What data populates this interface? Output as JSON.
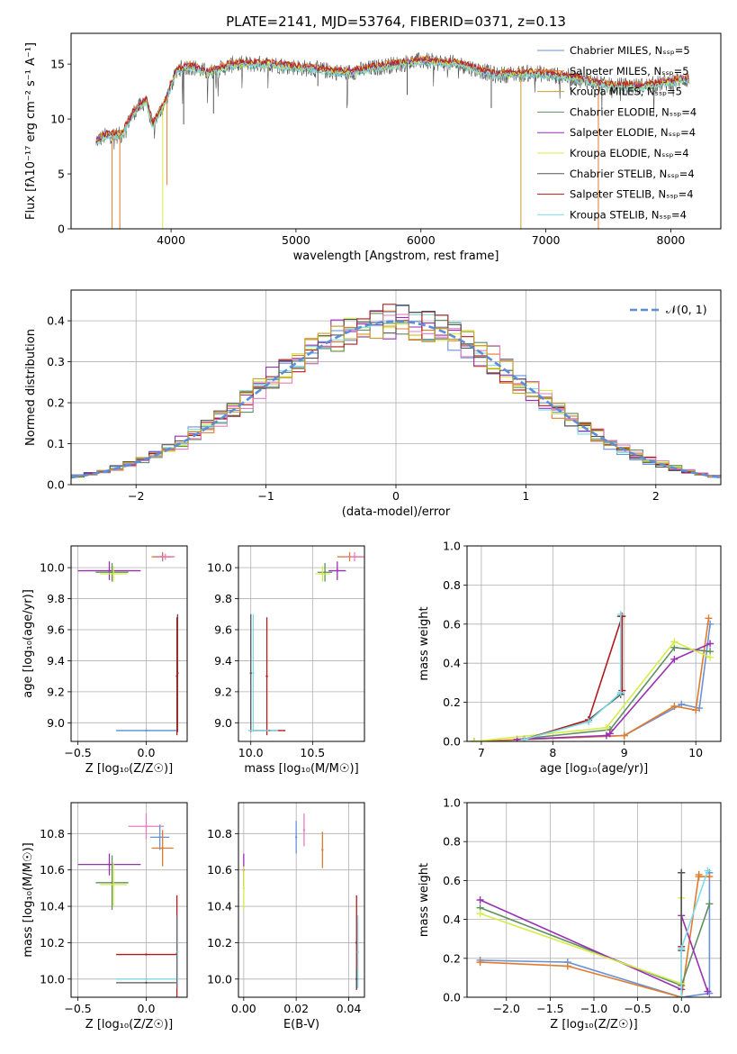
{
  "page_title": "PLATE=2141, MJD=53764, FIBERID=0371, z=0.13",
  "colors": {
    "chabrier_miles": "#6a93d6",
    "salpeter_miles": "#e07b2e",
    "kroupa_miles": "#c7a22a",
    "chabrier_elodie": "#5f8f63",
    "salpeter_elodie": "#9a2fb4",
    "kroupa_elodie": "#d6ec4a",
    "chabrier_stelib": "#555555",
    "salpeter_stelib": "#b21b1b",
    "kroupa_stelib": "#7fdbe6",
    "gaussian": "#5b8ed6",
    "pink": "#e57fc0",
    "grid": "#b0b0b0"
  },
  "chart_data": [
    {
      "id": "spectrum",
      "type": "line",
      "title": "PLATE=2141, MJD=53764, FIBERID=0371, z=0.13",
      "xlabel": "wavelength [Angstrom, rest frame]",
      "ylabel": "Flux [fλ10⁻¹⁷ erg cm⁻² s⁻¹ A⁻¹]",
      "xlim": [
        3200,
        8400
      ],
      "ylim": [
        0,
        17.8
      ],
      "xticks": [
        4000,
        5000,
        6000,
        7000,
        8000
      ],
      "yticks": [
        0,
        5,
        10,
        15
      ],
      "grid": false,
      "legend_position": "right",
      "continuum": {
        "x": [
          3400,
          3500,
          3600,
          3700,
          3800,
          3850,
          3950,
          4050,
          4150,
          4300,
          4500,
          4800,
          5100,
          5400,
          5700,
          6000,
          6300,
          6600,
          6900,
          7200,
          7500,
          7800,
          8100
        ],
        "y": [
          8.0,
          8.6,
          8.5,
          10.6,
          11.7,
          9.4,
          11.5,
          14.5,
          14.8,
          14.2,
          15.0,
          15.0,
          14.6,
          14.2,
          14.8,
          15.3,
          15.0,
          14.0,
          14.2,
          13.8,
          13.0,
          13.0,
          13.6
        ]
      },
      "absorption_dips": [
        {
          "x": 3527,
          "y": 0,
          "series": "Salpeter MILES"
        },
        {
          "x": 3590,
          "y": 0,
          "series": "Salpeter MILES"
        },
        {
          "x": 3933,
          "y": 0,
          "series": "Kroupa ELODIE"
        },
        {
          "x": 3968,
          "y": 4.0,
          "series": "Salpeter MILES"
        },
        {
          "x": 4101,
          "y": 9.5,
          "series": "Chabrier STELIB"
        },
        {
          "x": 4340,
          "y": 10.5,
          "series": "Chabrier STELIB"
        },
        {
          "x": 5175,
          "y": 13.0,
          "series": "Chabrier STELIB"
        },
        {
          "x": 5890,
          "y": 12.2,
          "series": "Chabrier STELIB"
        },
        {
          "x": 6563,
          "y": 11.0,
          "series": "Chabrier STELIB"
        },
        {
          "x": 6800,
          "y": 0,
          "series": "Kroupa MILES"
        },
        {
          "x": 7420,
          "y": 0,
          "series": "Salpeter MILES"
        }
      ],
      "series": [
        {
          "name": "Chabrier MILES, N_SSP=5",
          "color_key": "chabrier_miles",
          "offset": 0.0
        },
        {
          "name": "Salpeter MILES, N_SSP=5",
          "color_key": "salpeter_miles",
          "offset": 0.2
        },
        {
          "name": "Kroupa MILES, N_SSP=5",
          "color_key": "kroupa_miles",
          "offset": 0.1
        },
        {
          "name": "Chabrier ELODIE, N_SSP=4",
          "color_key": "chabrier_elodie",
          "offset": -0.1
        },
        {
          "name": "Salpeter ELODIE, N_SSP=4",
          "color_key": "salpeter_elodie",
          "offset": 0.05
        },
        {
          "name": "Kroupa ELODIE, N_SSP=4",
          "color_key": "kroupa_elodie",
          "offset": -0.05
        },
        {
          "name": "Chabrier STELIB, N_SSP=4",
          "color_key": "chabrier_stelib",
          "offset": 0.0
        },
        {
          "name": "Salpeter STELIB, N_SSP=4",
          "color_key": "salpeter_stelib",
          "offset": 0.15
        },
        {
          "name": "Kroupa STELIB, N_SSP=4",
          "color_key": "kroupa_stelib",
          "offset": -0.15
        }
      ]
    },
    {
      "id": "residuals",
      "type": "line",
      "xlabel": "(data-model)/error",
      "ylabel": "Normed distribution",
      "xlim": [
        -2.5,
        2.5
      ],
      "ylim": [
        0,
        0.475
      ],
      "xticks": [
        -2,
        -1,
        0,
        1,
        2
      ],
      "xticklabels": [
        "−2",
        "−1",
        "0",
        "1",
        "2"
      ],
      "yticks": [
        0.0,
        0.1,
        0.2,
        0.3,
        0.4
      ],
      "yticklabels": [
        "0.0",
        "0.1",
        "0.2",
        "0.3",
        "0.4"
      ],
      "grid": true,
      "legend_position": "top-right",
      "gaussian": {
        "name": "𝒩(0, 1)",
        "mean": 0,
        "sigma": 1,
        "style": "dashed"
      },
      "histogram": {
        "bin_width": 0.1,
        "range": [
          -2.5,
          2.5
        ],
        "n_series": 10
      }
    },
    {
      "id": "age_vs_Z",
      "type": "scatter",
      "xlabel": "Z [log₁₀(Z/Z☉)]",
      "ylabel": "age  [log₁₀(age/yr)]",
      "xlim": [
        -0.55,
        0.3
      ],
      "ylim": [
        8.88,
        10.14
      ],
      "xticks": [
        -0.5,
        0.0
      ],
      "xticklabels": [
        "−0.5",
        "0.0"
      ],
      "yticks": [
        9.0,
        9.2,
        9.4,
        9.6,
        9.8,
        10.0
      ],
      "yticklabels": [
        "9.0",
        "9.2",
        "9.4",
        "9.6",
        "9.8",
        "10.0"
      ],
      "grid": true,
      "points": [
        {
          "x": 0.12,
          "y": 10.07,
          "xerr": 0.06,
          "yerr": 0.03,
          "color_key": "chabrier_miles"
        },
        {
          "x": 0.12,
          "y": 10.07,
          "xerr": 0.08,
          "yerr": 0.02,
          "color_key": "salpeter_miles"
        },
        {
          "x": 0.14,
          "y": 10.07,
          "xerr": 0.07,
          "yerr": 0.02,
          "color_key": "pink"
        },
        {
          "x": -0.27,
          "y": 9.98,
          "xerr": 0.23,
          "yerr": 0.06,
          "color_key": "salpeter_elodie"
        },
        {
          "x": -0.25,
          "y": 9.97,
          "xerr": 0.12,
          "yerr": 0.06,
          "color_key": "chabrier_elodie"
        },
        {
          "x": -0.24,
          "y": 9.96,
          "xerr": 0.1,
          "yerr": 0.05,
          "color_key": "kroupa_elodie"
        },
        {
          "x": 0.23,
          "y": 9.32,
          "xerr": 0.0,
          "yerr": 0.38,
          "color_key": "chabrier_stelib"
        },
        {
          "x": 0.225,
          "y": 9.3,
          "xerr": 0.0,
          "yerr": 0.38,
          "color_key": "salpeter_stelib"
        },
        {
          "x": 0.0,
          "y": 8.95,
          "xerr": 0.22,
          "yerr": 0.0,
          "color_key": "kroupa_stelib"
        },
        {
          "x": 0.0,
          "y": 8.95,
          "xerr": 0.22,
          "yerr": 0.0,
          "color_key": "chabrier_miles"
        }
      ]
    },
    {
      "id": "age_vs_mass",
      "type": "scatter",
      "xlabel": "mass [log₁₀(M/M☉)]",
      "ylabel": "",
      "xlim": [
        9.9,
        10.92
      ],
      "ylim": [
        8.88,
        10.14
      ],
      "xticks": [
        10.0,
        10.5
      ],
      "xticklabels": [
        "10.0",
        "10.5"
      ],
      "yticks": [
        9.0,
        9.2,
        9.4,
        9.6,
        9.8,
        10.0
      ],
      "yticklabels": [
        "9.0",
        "9.2",
        "9.4",
        "9.6",
        "9.8",
        "10.0"
      ],
      "grid": true,
      "points": [
        {
          "x": 10.8,
          "y": 10.07,
          "xerr": 0.1,
          "yerr": 0.03,
          "color_key": "salpeter_miles"
        },
        {
          "x": 10.84,
          "y": 10.07,
          "xerr": 0.08,
          "yerr": 0.03,
          "color_key": "pink"
        },
        {
          "x": 10.7,
          "y": 9.98,
          "xerr": 0.07,
          "yerr": 0.06,
          "color_key": "salpeter_elodie"
        },
        {
          "x": 10.6,
          "y": 9.97,
          "xerr": 0.06,
          "yerr": 0.06,
          "color_key": "chabrier_elodie"
        },
        {
          "x": 10.58,
          "y": 9.96,
          "xerr": 0.06,
          "yerr": 0.05,
          "color_key": "kroupa_elodie"
        },
        {
          "x": 10.0,
          "y": 9.32,
          "xerr": 0.0,
          "yerr": 0.38,
          "color_key": "chabrier_stelib"
        },
        {
          "x": 10.13,
          "y": 9.3,
          "xerr": 0.0,
          "yerr": 0.38,
          "color_key": "salpeter_stelib"
        },
        {
          "x": 10.02,
          "y": 9.32,
          "xerr": 0.0,
          "yerr": 0.38,
          "color_key": "kroupa_stelib"
        },
        {
          "x": 10.15,
          "y": 8.95,
          "xerr": 0.13,
          "yerr": 0.0,
          "color_key": "salpeter_stelib"
        },
        {
          "x": 10.1,
          "y": 8.95,
          "xerr": 0.12,
          "yerr": 0.0,
          "color_key": "kroupa_stelib"
        }
      ]
    },
    {
      "id": "mass_weight_vs_age",
      "type": "line",
      "xlabel": "age  [log₁₀(age/yr)]",
      "ylabel": "mass weight",
      "xlim": [
        6.8,
        10.35
      ],
      "ylim": [
        0,
        1.0
      ],
      "xticks": [
        7,
        8,
        9,
        10
      ],
      "xticklabels": [
        "7",
        "8",
        "9",
        "10"
      ],
      "yticks": [
        0.0,
        0.2,
        0.4,
        0.6,
        0.8,
        1.0
      ],
      "yticklabels": [
        "0.0",
        "0.2",
        "0.4",
        "0.6",
        "0.8",
        "1.0"
      ],
      "grid": true,
      "series": [
        {
          "color_key": "chabrier_miles",
          "x": [
            6.9,
            9.0,
            9.8,
            10.05,
            10.2
          ],
          "y": [
            0.0,
            0.03,
            0.19,
            0.17,
            0.6
          ]
        },
        {
          "color_key": "salpeter_miles",
          "x": [
            6.9,
            9.0,
            9.7,
            10.0,
            10.18
          ],
          "y": [
            0.0,
            0.03,
            0.18,
            0.16,
            0.63
          ]
        },
        {
          "color_key": "chabrier_elodie",
          "x": [
            7.5,
            8.8,
            9.7,
            10.2
          ],
          "y": [
            0.01,
            0.06,
            0.48,
            0.46
          ]
        },
        {
          "color_key": "salpeter_elodie",
          "x": [
            7.5,
            8.75,
            8.8,
            9.7,
            10.2
          ],
          "y": [
            0.01,
            0.03,
            0.04,
            0.42,
            0.5
          ]
        },
        {
          "color_key": "kroupa_elodie",
          "x": [
            6.9,
            8.75,
            9.7,
            10.2
          ],
          "y": [
            0.0,
            0.07,
            0.51,
            0.43
          ]
        },
        {
          "color_key": "chabrier_stelib",
          "x": [
            7.6,
            8.5,
            8.95,
            8.95
          ],
          "y": [
            0.01,
            0.11,
            0.24,
            0.64
          ]
        },
        {
          "color_key": "salpeter_stelib",
          "x": [
            7.6,
            8.5,
            8.97,
            8.97
          ],
          "y": [
            0.01,
            0.11,
            0.64,
            0.26
          ]
        },
        {
          "color_key": "kroupa_stelib",
          "x": [
            7.6,
            8.5,
            8.95,
            8.95
          ],
          "y": [
            0.01,
            0.1,
            0.25,
            0.65
          ]
        }
      ]
    },
    {
      "id": "mass_vs_Z",
      "type": "scatter",
      "xlabel": "Z [log₁₀(Z/Z☉)]",
      "ylabel": "mass [log₁₀(M/M☉)]",
      "xlim": [
        -0.55,
        0.3
      ],
      "ylim": [
        9.9,
        10.97
      ],
      "xticks": [
        -0.5,
        0.0
      ],
      "xticklabels": [
        "−0.5",
        "0.0"
      ],
      "yticks": [
        10.0,
        10.2,
        10.4,
        10.6,
        10.8
      ],
      "yticklabels": [
        "10.0",
        "10.2",
        "10.4",
        "10.6",
        "10.8"
      ],
      "grid": true,
      "points": [
        {
          "x": 0.0,
          "y": 10.84,
          "xerr": 0.13,
          "yerr": 0.07,
          "color_key": "pink"
        },
        {
          "x": 0.1,
          "y": 10.78,
          "xerr": 0.07,
          "yerr": 0.07,
          "color_key": "chabrier_miles"
        },
        {
          "x": 0.12,
          "y": 10.72,
          "xerr": 0.08,
          "yerr": 0.1,
          "color_key": "salpeter_miles"
        },
        {
          "x": -0.27,
          "y": 10.63,
          "xerr": 0.23,
          "yerr": 0.06,
          "color_key": "salpeter_elodie"
        },
        {
          "x": -0.25,
          "y": 10.53,
          "xerr": 0.12,
          "yerr": 0.15,
          "color_key": "chabrier_elodie"
        },
        {
          "x": -0.24,
          "y": 10.52,
          "xerr": 0.1,
          "yerr": 0.12,
          "color_key": "kroupa_elodie"
        },
        {
          "x": 0.225,
          "y": 10.14,
          "xerr": 0.0,
          "yerr": 0.32,
          "color_key": "salpeter_stelib"
        },
        {
          "x": 0.0,
          "y": 10.135,
          "xerr": 0.22,
          "yerr": 0.0,
          "color_key": "salpeter_stelib"
        },
        {
          "x": 0.23,
          "y": 10.15,
          "xerr": 0.0,
          "yerr": 0.2,
          "color_key": "kroupa_stelib"
        },
        {
          "x": 0.0,
          "y": 9.98,
          "xerr": 0.22,
          "yerr": 0.0,
          "color_key": "chabrier_stelib"
        },
        {
          "x": 0.0,
          "y": 10.0,
          "xerr": 0.22,
          "yerr": 0.0,
          "color_key": "kroupa_stelib"
        }
      ]
    },
    {
      "id": "mass_vs_ebv",
      "type": "scatter",
      "xlabel": "E(B-V)",
      "ylabel": "",
      "xlim": [
        -0.002,
        0.046
      ],
      "ylim": [
        9.9,
        10.97
      ],
      "xticks": [
        0.0,
        0.02,
        0.04
      ],
      "xticklabels": [
        "0.00",
        "0.02",
        "0.04"
      ],
      "yticks": [
        10.0,
        10.2,
        10.4,
        10.6,
        10.8
      ],
      "yticklabels": [
        "10.0",
        "10.2",
        "10.4",
        "10.6",
        "10.8"
      ],
      "grid": true,
      "points": [
        {
          "x": 0.0,
          "y": 10.6,
          "xerr": 0,
          "yerr": 0.09,
          "color_key": "salpeter_elodie"
        },
        {
          "x": 0.0,
          "y": 10.5,
          "xerr": 0,
          "yerr": 0.12,
          "color_key": "kroupa_elodie"
        },
        {
          "x": 0.02,
          "y": 10.78,
          "xerr": 0,
          "yerr": 0.09,
          "color_key": "chabrier_miles"
        },
        {
          "x": 0.023,
          "y": 10.82,
          "xerr": 0,
          "yerr": 0.09,
          "color_key": "pink"
        },
        {
          "x": 0.03,
          "y": 10.71,
          "xerr": 0,
          "yerr": 0.1,
          "color_key": "salpeter_miles"
        },
        {
          "x": 0.043,
          "y": 10.2,
          "xerr": 0,
          "yerr": 0.26,
          "color_key": "salpeter_stelib"
        },
        {
          "x": 0.0435,
          "y": 10.15,
          "xerr": 0,
          "yerr": 0.2,
          "color_key": "kroupa_stelib"
        },
        {
          "x": 0.043,
          "y": 10.0,
          "xerr": 0,
          "yerr": 0.05,
          "color_key": "chabrier_stelib"
        }
      ]
    },
    {
      "id": "mass_weight_vs_Z",
      "type": "line",
      "xlabel": "Z [log₁₀(Z/Z☉)]",
      "ylabel": "mass weight",
      "xlim": [
        -2.45,
        0.45
      ],
      "ylim": [
        0,
        1.0
      ],
      "xticks": [
        -2.0,
        -1.5,
        -1.0,
        -0.5,
        0.0
      ],
      "xticklabels": [
        "−2.0",
        "−1.5",
        "−1.0",
        "−0.5",
        "0.0"
      ],
      "yticks": [
        0.0,
        0.2,
        0.4,
        0.6,
        0.8,
        1.0
      ],
      "yticklabels": [
        "0.0",
        "0.2",
        "0.4",
        "0.6",
        "0.8",
        "1.0"
      ],
      "grid": true,
      "series": [
        {
          "color_key": "chabrier_miles",
          "x": [
            -2.3,
            -1.3,
            0.0,
            0.32,
            0.32
          ],
          "y": [
            0.19,
            0.18,
            0.0,
            0.02,
            0.64
          ]
        },
        {
          "color_key": "salpeter_miles",
          "x": [
            -2.3,
            -1.3,
            0.0,
            0.2,
            0.2,
            0.32
          ],
          "y": [
            0.18,
            0.16,
            0.0,
            0.63,
            0.62,
            0.62
          ]
        },
        {
          "color_key": "chabrier_elodie",
          "x": [
            -2.3,
            0.0,
            0.32
          ],
          "y": [
            0.46,
            0.06,
            0.48
          ]
        },
        {
          "color_key": "salpeter_elodie",
          "x": [
            -2.3,
            0.0,
            0.0,
            0.3
          ],
          "y": [
            0.5,
            0.04,
            0.42,
            0.03
          ]
        },
        {
          "color_key": "kroupa_elodie",
          "x": [
            -2.3,
            0.0,
            0.0
          ],
          "y": [
            0.43,
            0.07,
            0.51
          ]
        },
        {
          "color_key": "salpeter_stelib",
          "x": [
            0.0,
            0.0
          ],
          "y": [
            0.26,
            0.64
          ]
        },
        {
          "color_key": "chabrier_stelib",
          "x": [
            0.0,
            0.0
          ],
          "y": [
            0.24,
            0.64
          ]
        },
        {
          "color_key": "kroupa_stelib",
          "x": [
            0.0,
            0.0,
            0.3
          ],
          "y": [
            0.0,
            0.25,
            0.65
          ]
        }
      ]
    }
  ]
}
